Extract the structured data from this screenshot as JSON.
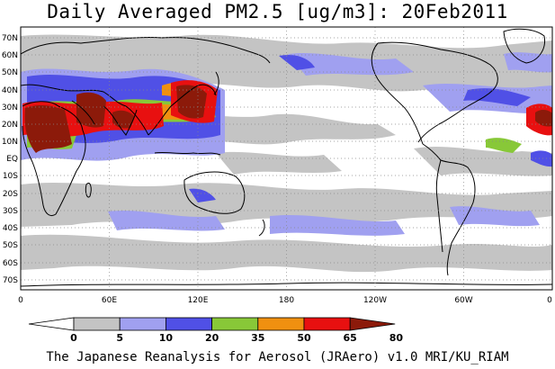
{
  "title": "Daily Averaged PM2.5 [ug/m3]: 20Feb2011",
  "footer": "The Japanese Reanalysis for Aerosol (JRAero) v1.0 MRI/KU_RIAM",
  "map": {
    "projection": "equirectangular",
    "lon_range": [
      0,
      360
    ],
    "lat_range": [
      -75,
      75
    ],
    "lat_labels": [
      "70N",
      "60N",
      "50N",
      "40N",
      "30N",
      "20N",
      "10N",
      "EQ",
      "10S",
      "20S",
      "30S",
      "40S",
      "50S",
      "60S",
      "70S"
    ],
    "lon_labels": [
      "0",
      "60E",
      "120E",
      "180",
      "120W",
      "60W",
      "0"
    ],
    "gridlines": "dotted"
  },
  "colorbar": {
    "levels": [
      "0",
      "5",
      "10",
      "20",
      "35",
      "50",
      "65",
      "80"
    ],
    "colors": [
      "#ffffff",
      "#c4c4c4",
      "#a0a0f0",
      "#5050e6",
      "#88c838",
      "#f09010",
      "#e81010",
      "#8c1a0a"
    ]
  }
}
